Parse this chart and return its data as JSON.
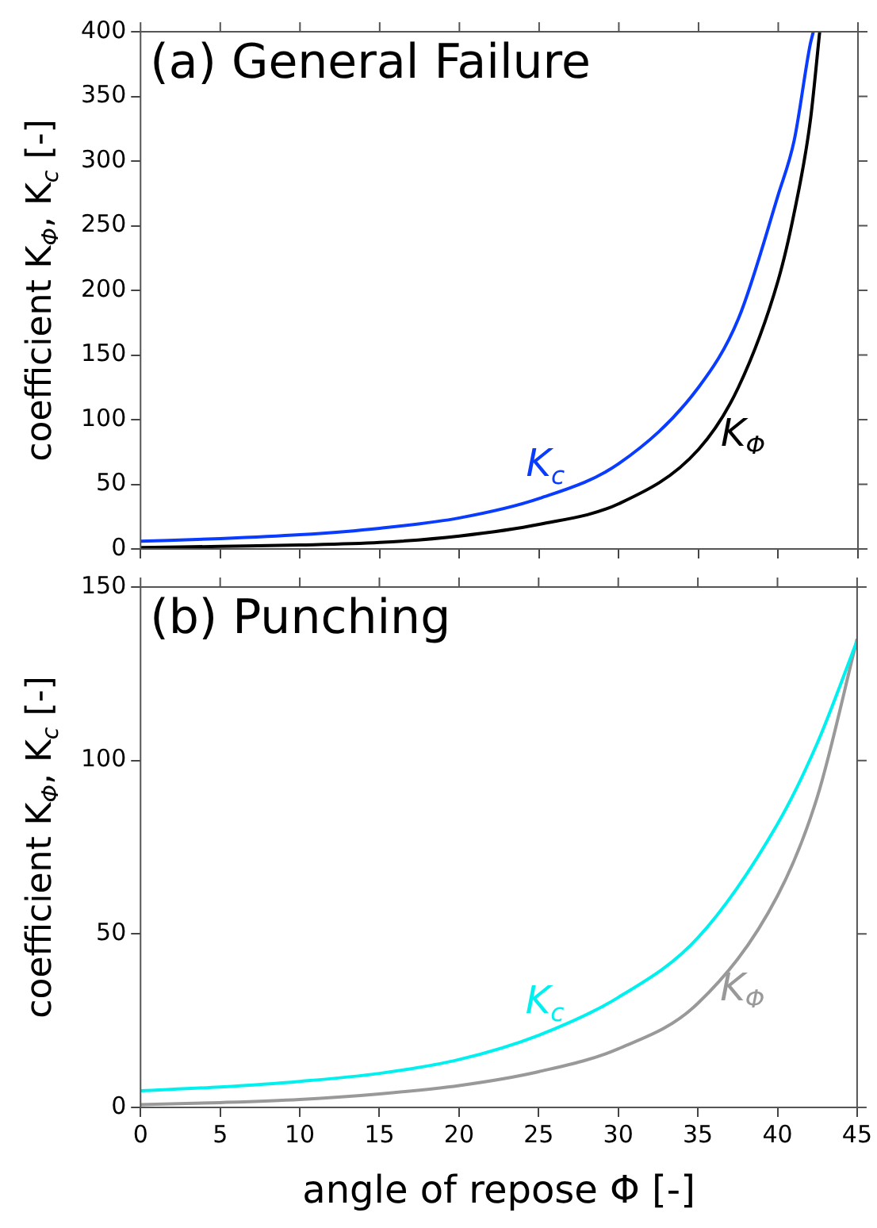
{
  "chart_data": [
    {
      "type": "line",
      "title": "(a) General Failure",
      "ylabel": "coefficient K$_{Φ}$, K$_{c}$ [-]",
      "x": [
        0,
        5,
        10,
        15,
        20,
        25,
        30,
        35,
        37.5,
        40,
        41,
        42,
        42.2
      ],
      "series": [
        {
          "name": "K$_{c}$",
          "color": "#0a3cff",
          "values": [
            6,
            8,
            11,
            16,
            24,
            39,
            66,
            125,
            178,
            274,
            316,
            390,
            400
          ]
        },
        {
          "name": "K$_{Φ}$",
          "color": "#000000",
          "x": [
            0,
            5,
            10,
            15,
            20,
            25,
            30,
            35,
            37.5,
            40,
            41,
            42,
            42.6
          ],
          "values": [
            1,
            2,
            3,
            5,
            10,
            19,
            35,
            77,
            125,
            208,
            260,
            330,
            400
          ]
        }
      ],
      "xlim": [
        0,
        45
      ],
      "xticks": [
        0,
        5,
        10,
        15,
        20,
        25,
        30,
        35,
        40,
        45
      ],
      "ylim": [
        0,
        400
      ],
      "yticks": [
        0,
        50,
        100,
        150,
        200,
        250,
        300,
        350,
        400
      ],
      "tick_labels": "y"
    },
    {
      "type": "line",
      "title": "(b) Punching",
      "xlabel": "angle of repose Φ [-]",
      "ylabel": "coefficient K$_{Φ}$, K$_{c}$ [-]",
      "x": [
        0,
        5,
        10,
        15,
        20,
        25,
        30,
        35,
        40,
        42.5,
        45
      ],
      "series": [
        {
          "name": "K$_{c}$",
          "color": "#00f0f0",
          "values": [
            4.8,
            5.9,
            7.5,
            9.8,
            13.8,
            20.8,
            31.7,
            48.9,
            81.7,
            105,
            134.5
          ]
        },
        {
          "name": "K$_{Φ}$",
          "color": "#999999",
          "values": [
            0.8,
            1.4,
            2.3,
            3.9,
            6.3,
            10.3,
            16.9,
            30,
            61,
            89.5,
            135
          ]
        }
      ],
      "xlim": [
        0,
        45
      ],
      "xticks": [
        0,
        5,
        10,
        15,
        20,
        25,
        30,
        35,
        40,
        45
      ],
      "ylim": [
        0,
        150
      ],
      "yticks": [
        0,
        50,
        100,
        150
      ]
    }
  ]
}
